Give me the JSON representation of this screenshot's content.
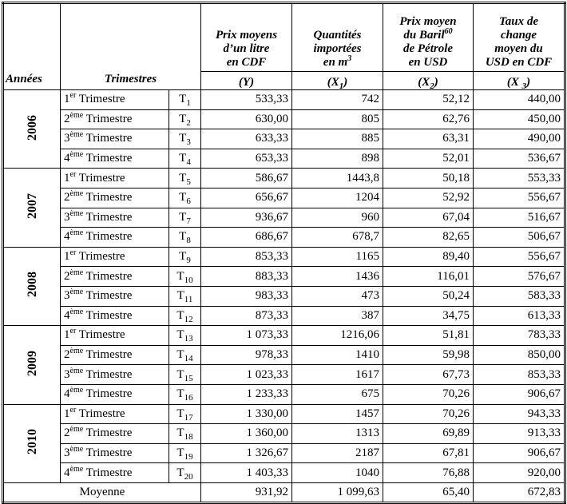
{
  "table": {
    "header": {
      "years": "Années",
      "quarters": "Trimestres",
      "columns": [
        {
          "lines": [
            [
              "Prix moyens"
            ],
            [
              "d’un litre"
            ],
            [
              "en CDF"
            ]
          ],
          "symbol": [
            "(Y)"
          ]
        },
        {
          "lines": [
            [
              "Quantités"
            ],
            [
              "importées"
            ],
            [
              "en m",
              {
                "sup": "3"
              }
            ]
          ],
          "symbol": [
            "(X",
            {
              "sub": "1"
            },
            ")"
          ]
        },
        {
          "lines": [
            [
              "Prix moyen"
            ],
            [
              "du Baril",
              {
                "sup": "60"
              }
            ],
            [
              "de Pétrole"
            ],
            [
              "en USD"
            ]
          ],
          "symbol": [
            "(X",
            {
              "sub": "2"
            },
            ")"
          ]
        },
        {
          "lines": [
            [
              "Taux de"
            ],
            [
              "change"
            ],
            [
              "moyen du"
            ],
            [
              "USD en CDF"
            ]
          ],
          "symbol": [
            "(X ",
            {
              "sub": "3"
            },
            ")"
          ]
        }
      ]
    },
    "groups": [
      {
        "year": "2006",
        "rows": [
          {
            "quarter": [
              "1",
              {
                "sup": "er"
              },
              " Trimestre"
            ],
            "code": [
              "T",
              {
                "sub": "1"
              }
            ],
            "values": [
              "533,33",
              "742",
              "52,12",
              "440,00"
            ]
          },
          {
            "quarter": [
              "2",
              {
                "sup": "ème"
              },
              " Trimestre"
            ],
            "code": [
              "T",
              {
                "sub": "2"
              }
            ],
            "values": [
              "630,00",
              "805",
              "62,76",
              "450,00"
            ]
          },
          {
            "quarter": [
              "3",
              {
                "sup": "ème"
              },
              " Trimestre"
            ],
            "code": [
              "T",
              {
                "sub": "3"
              }
            ],
            "values": [
              "633,33",
              "885",
              "63,31",
              "490,00"
            ]
          },
          {
            "quarter": [
              "4",
              {
                "sup": "ème"
              },
              " Trimestre"
            ],
            "code": [
              "T",
              {
                "sub": "4"
              }
            ],
            "values": [
              "653,33",
              "898",
              "52,01",
              "536,67"
            ]
          }
        ]
      },
      {
        "year": "2007",
        "rows": [
          {
            "quarter": [
              "1",
              {
                "sup": "er"
              },
              " Trimestre"
            ],
            "code": [
              "T",
              {
                "sub": "5"
              }
            ],
            "values": [
              "586,67",
              "1443,8",
              "50,18",
              "553,33"
            ]
          },
          {
            "quarter": [
              "2",
              {
                "sup": "ème"
              },
              " Trimestre"
            ],
            "code": [
              "T",
              {
                "sub": "6"
              }
            ],
            "values": [
              "656,67",
              "1204",
              "52,92",
              "556,67"
            ]
          },
          {
            "quarter": [
              "3",
              {
                "sup": "ème"
              },
              " Trimestre"
            ],
            "code": [
              "T",
              {
                "sub": "7"
              }
            ],
            "values": [
              "936,67",
              "960",
              "67,04",
              "516,67"
            ]
          },
          {
            "quarter": [
              "4",
              {
                "sup": "ème"
              },
              " Trimestre"
            ],
            "code": [
              "T",
              {
                "sub": "8"
              }
            ],
            "values": [
              "686,67",
              "678,7",
              "82,65",
              "506,67"
            ]
          }
        ]
      },
      {
        "year": "2008",
        "rows": [
          {
            "quarter": [
              "1",
              {
                "sup": "er"
              },
              " Trimestre"
            ],
            "code": [
              "T",
              {
                "sub": "9"
              }
            ],
            "values": [
              "853,33",
              "1165",
              "89,40",
              "556,67"
            ]
          },
          {
            "quarter": [
              "2",
              {
                "sup": "ème"
              },
              " Trimestre"
            ],
            "code": [
              "T",
              {
                "sub": "10"
              }
            ],
            "values": [
              "883,33",
              "1436",
              "116,01",
              "576,67"
            ]
          },
          {
            "quarter": [
              "3",
              {
                "sup": "ème"
              },
              " Trimestre"
            ],
            "code": [
              "T",
              {
                "sub": "11"
              }
            ],
            "values": [
              "983,33",
              "473",
              "50,24",
              "583,33"
            ]
          },
          {
            "quarter": [
              "4",
              {
                "sup": "ème"
              },
              " Trimestre"
            ],
            "code": [
              "T",
              {
                "sub": "12"
              }
            ],
            "values": [
              "873,33",
              "387",
              "34,75",
              "613,33"
            ]
          }
        ]
      },
      {
        "year": "2009",
        "rows": [
          {
            "quarter": [
              "1",
              {
                "sup": "er"
              },
              " Trimestre"
            ],
            "code": [
              "T",
              {
                "sub": "13"
              }
            ],
            "values": [
              "1 073,33",
              "1216,06",
              "51,81",
              "783,33"
            ]
          },
          {
            "quarter": [
              "2",
              {
                "sup": "ème"
              },
              " Trimestre"
            ],
            "code": [
              "T",
              {
                "sub": "14"
              }
            ],
            "values": [
              "978,33",
              "1410",
              "59,98",
              "850,00"
            ]
          },
          {
            "quarter": [
              "3",
              {
                "sup": "ème"
              },
              " Trimestre"
            ],
            "code": [
              "T",
              {
                "sub": "15"
              }
            ],
            "values": [
              "1 023,33",
              "1617",
              "67,73",
              "853,33"
            ]
          },
          {
            "quarter": [
              "4",
              {
                "sup": "ème"
              },
              " Trimestre"
            ],
            "code": [
              "T",
              {
                "sub": "16"
              }
            ],
            "values": [
              "1 233,33",
              "675",
              "70,26",
              "906,67"
            ]
          }
        ]
      },
      {
        "year": "2010",
        "rows": [
          {
            "quarter": [
              "1",
              {
                "sup": "er"
              },
              " Trimestre"
            ],
            "code": [
              "T",
              {
                "sub": "17"
              }
            ],
            "values": [
              "1 330,00",
              "1457",
              "70,26",
              "943,33"
            ]
          },
          {
            "quarter": [
              "2",
              {
                "sup": "ème"
              },
              " Trimestre"
            ],
            "code": [
              "T",
              {
                "sub": "18"
              }
            ],
            "values": [
              "1 360,00",
              "1313",
              "69,89",
              "913,33"
            ]
          },
          {
            "quarter": [
              "3",
              {
                "sup": "ème"
              },
              " Trimestre"
            ],
            "code": [
              "T",
              {
                "sub": "19"
              }
            ],
            "values": [
              "1 326,67",
              "2187",
              "67,81",
              "906,67"
            ]
          },
          {
            "quarter": [
              "4",
              {
                "sup": "ème"
              },
              " Trimestre"
            ],
            "code": [
              "T",
              {
                "sub": "20"
              }
            ],
            "values": [
              "1 403,33",
              "1040",
              "76,88",
              "920,00"
            ]
          }
        ]
      }
    ],
    "footer": {
      "label": "Moyenne",
      "values": [
        "931,92",
        "1 099,63",
        "65,40",
        "672,83"
      ]
    }
  }
}
